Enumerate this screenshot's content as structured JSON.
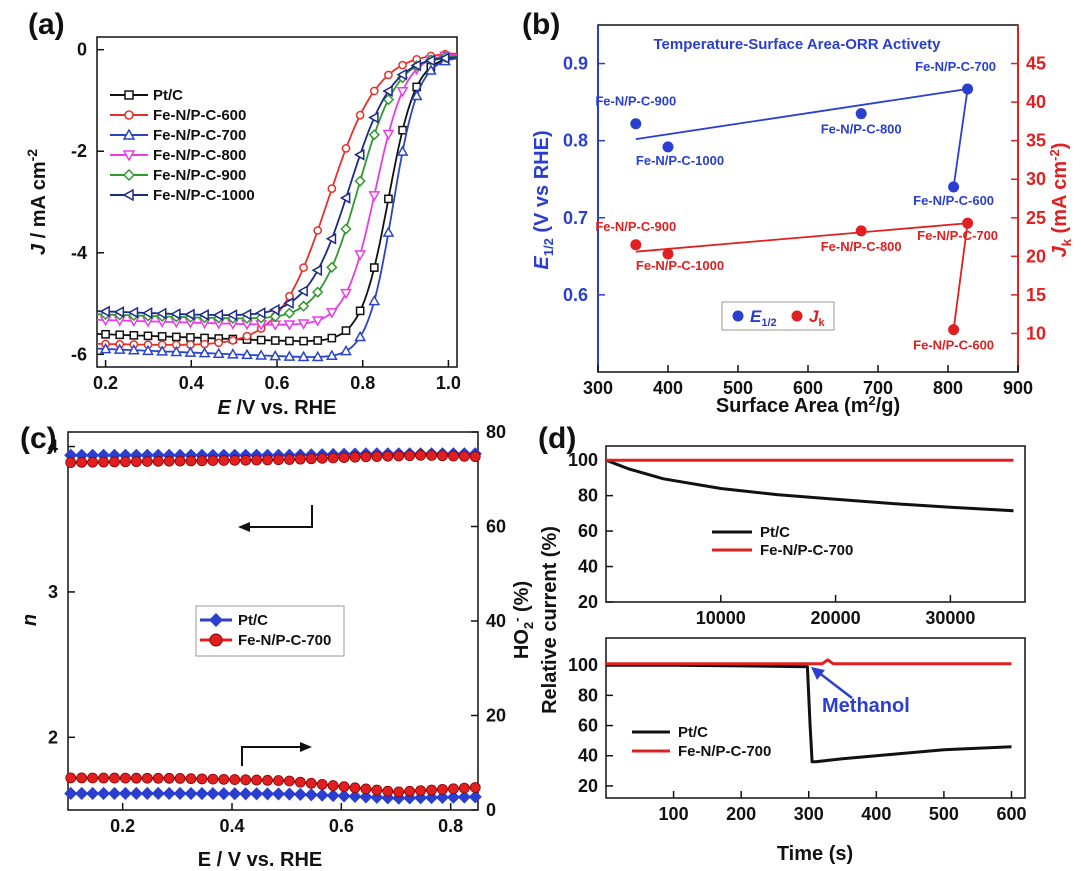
{
  "colors": {
    "pt": "#111111",
    "fe600": "#e8302a",
    "fe700": "#2a45c8",
    "fe800": "#e83ce8",
    "fe900": "#2e9a2e",
    "fe1000": "#1c2a8a",
    "blue": "#2a3fd0",
    "red": "#e02020",
    "grey": "#888888"
  },
  "chart_data": [
    {
      "panel": "(a)",
      "type": "line",
      "xlabel_italic": "E",
      "xlabel": " /V vs. RHE",
      "ylabel_italic": "J",
      "ylabel": " / mA cm",
      "ylabel_sup": "-2",
      "xlim": [
        0.18,
        1.02
      ],
      "ylim": [
        -6.25,
        0.25
      ],
      "xticks": [
        "0.2",
        "0.4",
        "0.6",
        "0.8",
        "1.0"
      ],
      "yticks": [
        "-6",
        "-4",
        "-2",
        "0"
      ],
      "series": [
        {
          "name": "Pt/C",
          "E_half": 0.86,
          "limit": -5.75,
          "w": 0.032,
          "slope": 0.9,
          "marker": "square",
          "color_key": "pt"
        },
        {
          "name": "Fe-N/P-C-600",
          "E_half": 0.72,
          "limit": -5.9,
          "w": 0.058,
          "slope": 0.5,
          "marker": "circle",
          "color_key": "fe600"
        },
        {
          "name": "Fe-N/P-C-700",
          "E_half": 0.87,
          "limit": -6.05,
          "w": 0.03,
          "slope": 1.0,
          "marker": "triangle-up",
          "color_key": "fe700"
        },
        {
          "name": "Fe-N/P-C-800",
          "E_half": 0.83,
          "limit": -5.45,
          "w": 0.035,
          "slope": 0.7,
          "marker": "triangle-down",
          "color_key": "fe800"
        },
        {
          "name": "Fe-N/P-C-900",
          "E_half": 0.79,
          "limit": -5.35,
          "w": 0.045,
          "slope": 0.8,
          "marker": "diamond",
          "color_key": "fe900"
        },
        {
          "name": "Fe-N/P-C-1000",
          "E_half": 0.77,
          "limit": -5.3,
          "w": 0.05,
          "slope": 0.9,
          "marker": "triangle-left",
          "color_key": "fe1000"
        }
      ]
    },
    {
      "panel": "(b)",
      "type": "scatter",
      "title": "Temperature-Surface Area-ORR Activety",
      "xlabel": "Surface Area (m",
      "xlabel_sup": "2",
      "xlabel_end": "/g)",
      "ylabel_left": "E",
      "ylabel_left_sub": "1/2",
      "ylabel_left_end": " (V vs RHE)",
      "ylabel_right": "J",
      "ylabel_right_sub": "k",
      "ylabel_right_end": " (mA cm",
      "ylabel_right_sup": "-2",
      "ylabel_right_close": ")",
      "xlim": [
        300,
        900
      ],
      "ylim_left": [
        0.5,
        0.95
      ],
      "ylim_right": [
        5,
        50
      ],
      "xticks": [
        "300",
        "400",
        "500",
        "600",
        "700",
        "800",
        "900"
      ],
      "yticks_left": [
        "0.6",
        "0.7",
        "0.8",
        "0.9"
      ],
      "yticks_right": [
        "10",
        "15",
        "20",
        "25",
        "30",
        "35",
        "40",
        "45"
      ],
      "legend": [
        "E",
        "1/2",
        "J",
        "k"
      ],
      "e_half_points": [
        {
          "label": "Fe-N/P-C-900",
          "x": 354,
          "y": 0.822
        },
        {
          "label": "Fe-N/P-C-1000",
          "x": 400,
          "y": 0.792
        },
        {
          "label": "Fe-N/P-C-800",
          "x": 676,
          "y": 0.835
        },
        {
          "label": "Fe-N/P-C-700",
          "x": 828,
          "y": 0.867
        },
        {
          "label": "Fe-N/P-C-600",
          "x": 808,
          "y": 0.74
        }
      ],
      "jk_points": [
        {
          "label": "Fe-N/P-C-900",
          "x": 354,
          "y": 21.5
        },
        {
          "label": "Fe-N/P-C-1000",
          "x": 400,
          "y": 20.3
        },
        {
          "label": "Fe-N/P-C-800",
          "x": 676,
          "y": 23.3
        },
        {
          "label": "Fe-N/P-C-700",
          "x": 828,
          "y": 24.3
        },
        {
          "label": "Fe-N/P-C-600",
          "x": 808,
          "y": 10.5
        }
      ],
      "e_half_fit": [
        [
          354,
          0.802
        ],
        [
          828,
          0.867
        ],
        [
          808,
          0.74
        ]
      ],
      "jk_fit": [
        [
          354,
          20.6
        ],
        [
          828,
          24.3
        ],
        [
          808,
          10.5
        ]
      ]
    },
    {
      "panel": "(c)",
      "type": "line",
      "xlabel": "E / V vs. RHE",
      "ylabel_left": "n",
      "ylabel_right": "HO",
      "ylabel_right_sub": "2",
      "ylabel_right_sup": "-",
      "ylabel_right_end": " (%)",
      "xlim": [
        0.1,
        0.85
      ],
      "ylim_left": [
        1.5,
        4.1
      ],
      "ylim_right": [
        0,
        80
      ],
      "xticks": [
        "0.2",
        "0.4",
        "0.6",
        "0.8"
      ],
      "yticks_left": [
        "2",
        "3",
        "4"
      ],
      "yticks_right": [
        "0",
        "20",
        "40",
        "60",
        "80"
      ],
      "legend": [
        "Pt/C",
        "Fe-N/P-C-700"
      ],
      "series": [
        {
          "name": "Pt/C n",
          "axis": "left",
          "x": [
            0.1,
            0.3,
            0.5,
            0.65,
            0.75,
            0.85
          ],
          "y": [
            3.94,
            3.94,
            3.94,
            3.95,
            3.95,
            3.95
          ],
          "color_key": "blue",
          "marker": "diamond"
        },
        {
          "name": "Fe-N/P-C-700 n",
          "axis": "left",
          "x": [
            0.1,
            0.3,
            0.5,
            0.65,
            0.75,
            0.85
          ],
          "y": [
            3.89,
            3.9,
            3.91,
            3.93,
            3.94,
            3.93
          ],
          "color_key": "red",
          "marker": "circle"
        },
        {
          "name": "Pt/C HO2",
          "axis": "right",
          "x": [
            0.1,
            0.3,
            0.5,
            0.6,
            0.7,
            0.85
          ],
          "y": [
            3.5,
            3.5,
            3.4,
            3.0,
            2.5,
            2.8
          ],
          "color_key": "blue",
          "marker": "diamond"
        },
        {
          "name": "Fe-N/P-C-700 HO2",
          "axis": "right",
          "x": [
            0.1,
            0.3,
            0.5,
            0.6,
            0.7,
            0.85
          ],
          "y": [
            6.8,
            6.7,
            6.2,
            5.0,
            3.8,
            4.8
          ],
          "color_key": "red",
          "marker": "circle"
        }
      ]
    },
    {
      "panel": "(d)",
      "type": "line",
      "ylabel": "Relative current (%)",
      "top": {
        "xlim": [
          0,
          36500
        ],
        "ylim": [
          20,
          108
        ],
        "xticks": [
          "10000",
          "20000",
          "30000"
        ],
        "yticks": [
          "20",
          "40",
          "60",
          "80",
          "100"
        ],
        "legend": [
          "Pt/C",
          "Fe-N/P-C-700"
        ],
        "series": [
          {
            "name": "Pt/C",
            "x": [
              0,
              2000,
              5000,
              10000,
              15000,
              20000,
              25000,
              30000,
              35500
            ],
            "y": [
              100,
              95,
              89.5,
              84,
              80.5,
              78,
              75.5,
              73.5,
              71.5
            ],
            "color_key": "pt"
          },
          {
            "name": "Fe-N/P-C-700",
            "x": [
              0,
              35500
            ],
            "y": [
              100,
              100
            ],
            "color_key": "red"
          }
        ]
      },
      "bottom": {
        "xlabel": "Time (s)",
        "xlim": [
          0,
          620
        ],
        "ylim": [
          12,
          118
        ],
        "xticks": [
          "100",
          "200",
          "300",
          "400",
          "500",
          "600"
        ],
        "yticks": [
          "20",
          "40",
          "60",
          "80",
          "100"
        ],
        "legend": [
          "Pt/C",
          "Fe-N/P-C-700"
        ],
        "annotation": "Methanol",
        "series": [
          {
            "name": "Pt/C",
            "x": [
              0,
              100,
              200,
              298,
              302,
              305,
              310,
              350,
              400,
              450,
              500,
              550,
              600
            ],
            "y": [
              100,
              100,
              99.5,
              99,
              60,
              36,
              36,
              38,
              40,
              42,
              44,
              45,
              46
            ],
            "color_key": "pt"
          },
          {
            "name": "Fe-N/P-C-700",
            "x": [
              0,
              320,
              328,
              336,
              600
            ],
            "y": [
              101,
              101,
              103.5,
              101,
              101
            ],
            "color_key": "red"
          }
        ]
      }
    }
  ]
}
